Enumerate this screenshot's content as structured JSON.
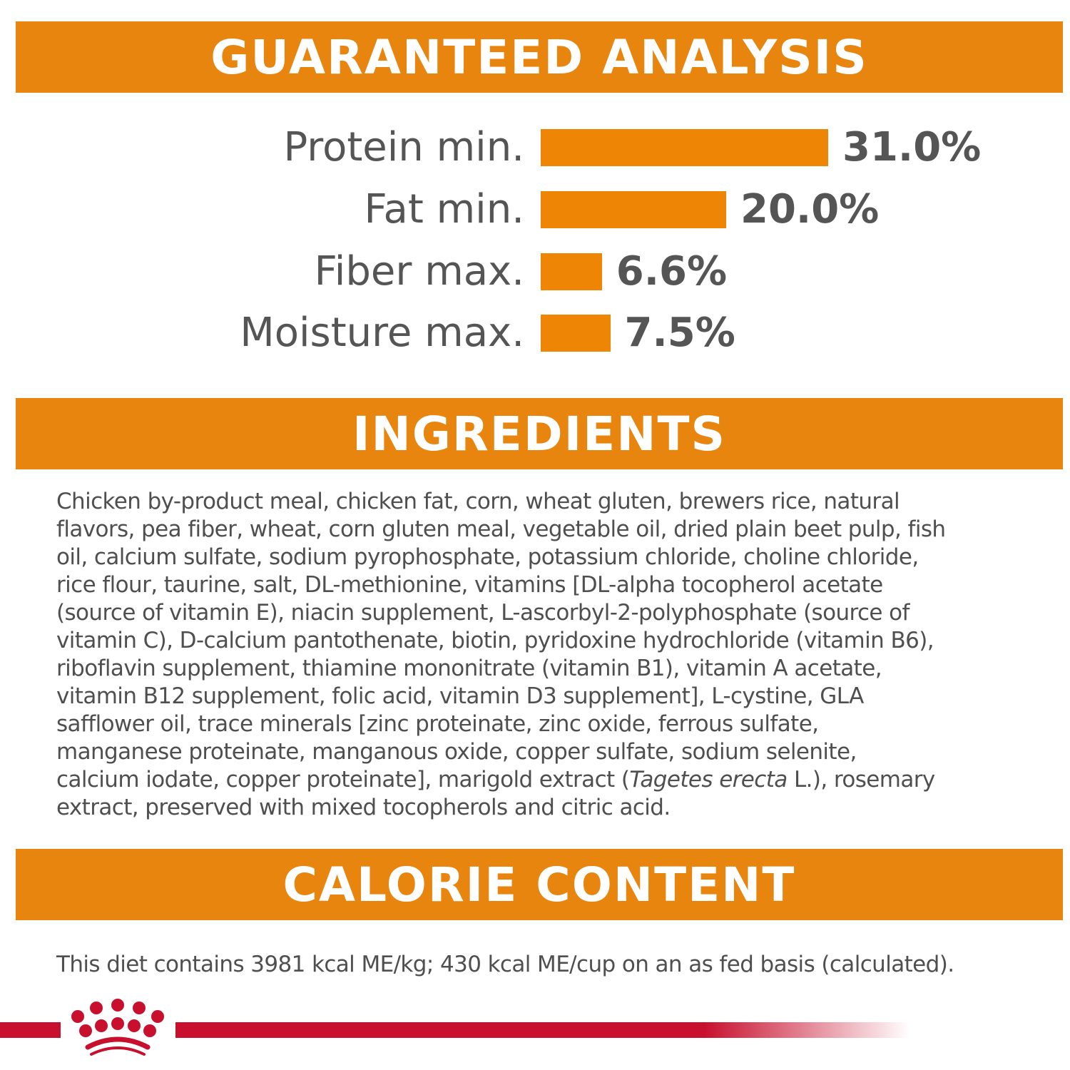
{
  "headers": {
    "analysis": "GUARANTEED ANALYSIS",
    "ingredients": "INGREDIENTS",
    "calorie": "CALORIE CONTENT"
  },
  "analysis": [
    {
      "label": "Protein min.",
      "value": "31.0%",
      "percent": 31.0
    },
    {
      "label": "Fat min.",
      "value": "20.0%",
      "percent": 20.0
    },
    {
      "label": "Fiber max.",
      "value": "6.6%",
      "percent": 6.6
    },
    {
      "label": "Moisture max.",
      "value": "7.5%",
      "percent": 7.5
    }
  ],
  "ingredients": {
    "lines": [
      "Chicken by-product meal, chicken fat, corn, wheat gluten, brewers rice, natural",
      "flavors, pea fiber, wheat, corn gluten meal, vegetable oil, dried plain beet pulp, fish",
      "oil, calcium sulfate, sodium pyrophosphate, potassium chloride, choline chloride,",
      "rice flour, taurine, salt, DL-methionine, vitamins [DL-alpha tocopherol acetate",
      "(source of vitamin E), niacin supplement, L-ascorbyl-2-polyphosphate (source of",
      "vitamin C), D-calcium pantothenate, biotin, pyridoxine hydrochloride (vitamin B6),",
      "riboflavin supplement, thiamine mononitrate (vitamin B1), vitamin A acetate,",
      "vitamin B12 supplement, folic acid, vitamin D3 supplement], L-cystine, GLA",
      "safflower oil, trace minerals [zinc proteinate, zinc oxide, ferrous sulfate,",
      "manganese proteinate, manganous oxide, copper sulfate, sodium selenite,"
    ],
    "line11_pre": "calcium iodate, copper proteinate], marigold extract (",
    "line11_italic": "Tagetes erecta",
    "line11_post": " L.), rosemary",
    "line12": "extract, preserved with mixed tocopherols and citric acid."
  },
  "calorie_text": "This diet contains 3981 kcal ME/kg; 430 kcal ME/cup on an as fed basis (calculated).",
  "logo": {
    "icon": "crown-icon",
    "color": "#C8102E"
  },
  "colors": {
    "accent": "#E8850F",
    "brand_red": "#C8102E",
    "text": "#4f4f4f"
  }
}
